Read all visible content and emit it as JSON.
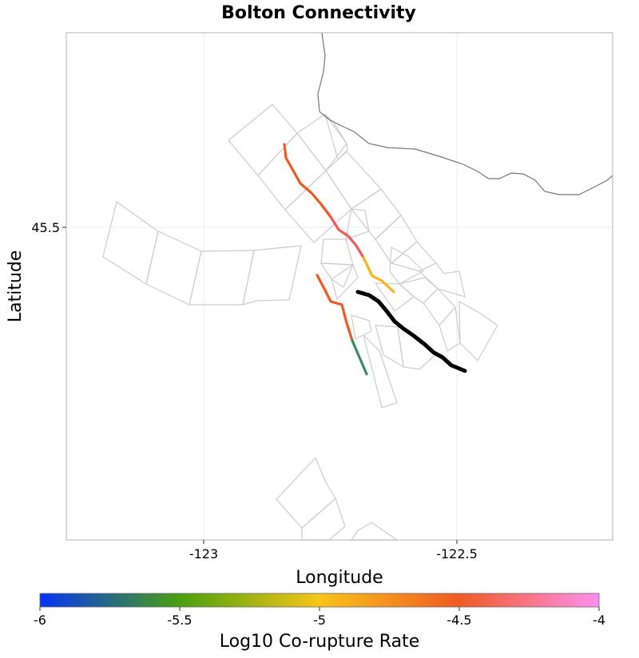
{
  "title": "Bolton Connectivity",
  "x_axis": {
    "label": "Longitude",
    "ticks": [
      {
        "value": -123,
        "label": "-123"
      },
      {
        "value": -122.5,
        "label": "-122.5"
      }
    ]
  },
  "y_axis": {
    "label": "Latitude",
    "ticks": [
      {
        "value": 45.5,
        "label": "45.5"
      }
    ]
  },
  "colorbar": {
    "label": "Log10 Co-rupture Rate",
    "range": [
      -6,
      -4
    ],
    "ticks": [
      {
        "value": -6,
        "label": "-6"
      },
      {
        "value": -5.5,
        "label": "-5.5"
      },
      {
        "value": -5,
        "label": "-5"
      },
      {
        "value": -4.5,
        "label": "-4.5"
      },
      {
        "value": -4,
        "label": "-4"
      }
    ],
    "colors": [
      "#0534f5",
      "#4aa00e",
      "#f8c51a",
      "#ef5a23",
      "#ff8ff0"
    ]
  },
  "colors": {
    "target_fault": "#000000",
    "outline": "#cccccc",
    "coastline": "#777777",
    "grid": "#ebebeb",
    "frame": "#b3b3b3"
  }
}
